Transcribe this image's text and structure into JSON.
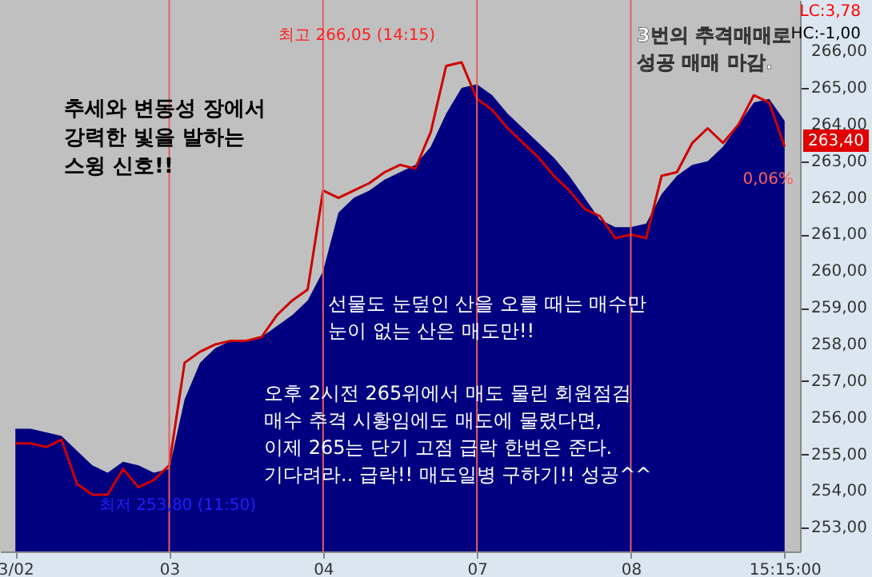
{
  "chart_data": {
    "type": "line",
    "categories": [
      "3/02",
      null,
      null,
      null,
      null,
      null,
      null,
      null,
      null,
      null,
      "03",
      null,
      null,
      null,
      null,
      null,
      null,
      null,
      null,
      null,
      "04",
      null,
      null,
      null,
      null,
      null,
      null,
      null,
      null,
      null,
      "07",
      null,
      null,
      null,
      null,
      null,
      null,
      null,
      null,
      null,
      "08",
      null,
      null,
      null,
      null,
      null,
      null,
      null,
      null,
      null,
      "15:15:00"
    ],
    "series": [
      {
        "type": "area",
        "color": "#000080",
        "values": [
          255.7,
          255.7,
          255.6,
          255.5,
          255.1,
          254.7,
          254.5,
          254.8,
          254.7,
          254.5,
          254.6,
          256.5,
          257.5,
          257.9,
          258.1,
          258.1,
          258.2,
          258.5,
          258.8,
          259.2,
          260.0,
          261.6,
          262.0,
          262.2,
          262.5,
          262.7,
          262.9,
          263.4,
          264.3,
          265.0,
          265.1,
          264.8,
          264.3,
          263.9,
          263.5,
          263.1,
          262.6,
          262.0,
          261.4,
          261.2,
          261.2,
          261.3,
          262.1,
          262.6,
          262.9,
          263.0,
          263.4,
          264.0,
          264.6,
          264.7,
          264.1
        ]
      },
      {
        "color": "#d00000",
        "values": [
          255.3,
          255.3,
          255.2,
          255.4,
          254.2,
          253.9,
          253.9,
          254.6,
          254.1,
          254.3,
          254.7,
          257.5,
          257.8,
          258.0,
          258.1,
          258.1,
          258.2,
          258.8,
          259.2,
          259.5,
          262.2,
          262.0,
          262.2,
          262.4,
          262.7,
          262.9,
          262.8,
          263.8,
          265.6,
          265.7,
          264.7,
          264.4,
          263.9,
          263.5,
          263.1,
          262.6,
          262.2,
          261.7,
          261.5,
          260.9,
          261.0,
          260.9,
          262.6,
          262.7,
          263.5,
          263.9,
          263.5,
          264.0,
          264.8,
          264.6,
          263.4
        ]
      }
    ],
    "ylim": [
      252.35,
      267.4
    ],
    "yticks": [
      {
        "value": 253,
        "label": "253,00"
      },
      {
        "value": 254,
        "label": "254,00"
      },
      {
        "value": 255,
        "label": "255,00"
      },
      {
        "value": 256,
        "label": "256,00"
      },
      {
        "value": 257,
        "label": "257,00"
      },
      {
        "value": 258,
        "label": "258,00"
      },
      {
        "value": 259,
        "label": "259,00"
      },
      {
        "value": 260,
        "label": "260,00"
      },
      {
        "value": 261,
        "label": "261,00"
      },
      {
        "value": 262,
        "label": "262,00"
      },
      {
        "value": 263,
        "label": "263,00"
      },
      {
        "value": 264,
        "label": "264,00"
      },
      {
        "value": 265,
        "label": "265,00"
      },
      {
        "value": 266,
        "label": "266,00"
      }
    ],
    "ref_lines": [
      {
        "axis": "x",
        "value": "03",
        "color": "#e06060"
      },
      {
        "axis": "x",
        "value": "04",
        "color": "#e06060"
      },
      {
        "axis": "x",
        "value": "07",
        "color": "#e06060"
      },
      {
        "axis": "x",
        "value": "08",
        "color": "#e06060"
      }
    ],
    "annotations": [
      "최고 266,05 (14:15)",
      "최저 253,80 (11:50)",
      "추세와 변동성 장에서\n강력한 빛을 발하는\n스윙 신호!!",
      "3번의 추격매매로\n성공 매매 마감.",
      "선물도 눈덮인 산을 오를 때는 매수만\n눈이 없는 산은 매도만!!",
      "오후 2시전 265위에서 매도 물린 회원점검\n매수 추격 시황임에도 매도에 물렸다면,\n이제 265는 단기 고점 급락 한번은 준다.\n기다려라.. 급락!! 매도일병 구하기!! 성공^^",
      "LC:3,78",
      "HC:-1,00",
      "263,40",
      "0,06%"
    ]
  }
}
